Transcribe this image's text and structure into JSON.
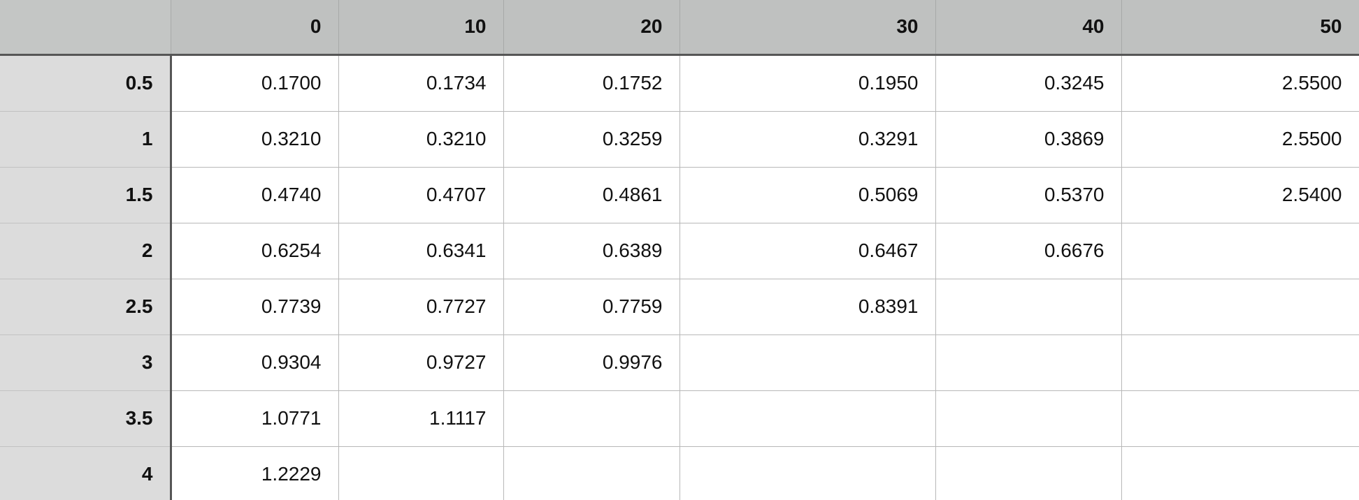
{
  "table": {
    "columns": [
      "0",
      "10",
      "20",
      "30",
      "40",
      "50"
    ],
    "rows": [
      {
        "header": "0.5",
        "cells": [
          "0.1700",
          "0.1734",
          "0.1752",
          "0.1950",
          "0.3245",
          "2.5500"
        ]
      },
      {
        "header": "1",
        "cells": [
          "0.3210",
          "0.3210",
          "0.3259",
          "0.3291",
          "0.3869",
          "2.5500"
        ]
      },
      {
        "header": "1.5",
        "cells": [
          "0.4740",
          "0.4707",
          "0.4861",
          "0.5069",
          "0.5370",
          "2.5400"
        ]
      },
      {
        "header": "2",
        "cells": [
          "0.6254",
          "0.6341",
          "0.6389",
          "0.6467",
          "0.6676",
          ""
        ]
      },
      {
        "header": "2.5",
        "cells": [
          "0.7739",
          "0.7727",
          "0.7759",
          "0.8391",
          "",
          ""
        ]
      },
      {
        "header": "3",
        "cells": [
          "0.9304",
          "0.9727",
          "0.9976",
          "",
          "",
          ""
        ]
      },
      {
        "header": "3.5",
        "cells": [
          "1.0771",
          "1.1117",
          "",
          "",
          "",
          ""
        ]
      },
      {
        "header": "4",
        "cells": [
          "1.2229",
          "",
          "",
          "",
          "",
          ""
        ]
      }
    ]
  },
  "colors": {
    "column_header_bg": "#bfc1c0",
    "row_header_bg": "#dcdcdc",
    "header_rule": "#565656",
    "gridline": "#b8b8b8"
  }
}
